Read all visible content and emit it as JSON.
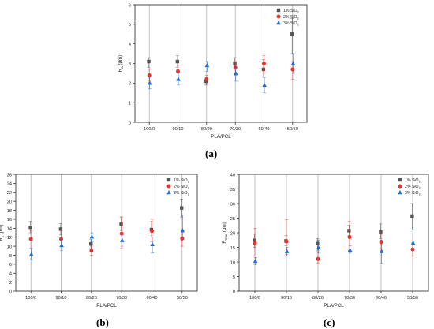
{
  "figure": {
    "panel_labels": [
      "(a)",
      "(b)",
      "(c)"
    ]
  },
  "series_colors": [
    "#555555",
    "#e8332c",
    "#1f6fd1"
  ],
  "series_markers": [
    "square",
    "circle",
    "triangle"
  ],
  "chart_data": [
    {
      "type": "scatter",
      "panel": "(a)",
      "xlabel": "PLA/PCL",
      "ylabel": "Ra (μm)",
      "ylabel_main": "R",
      "ylabel_sub": "a",
      "ylabel_unit": " (μm)",
      "categories": [
        "100/0",
        "90/10",
        "80/20",
        "70/30",
        "60/40",
        "50/50"
      ],
      "ylim": [
        0,
        6
      ],
      "yticks": [
        0,
        1,
        2,
        3,
        4,
        5,
        6
      ],
      "legend_position": "top-right",
      "series": [
        {
          "name": "1% SiO2",
          "name_main": "1% SiO",
          "name_sub": "2",
          "values": [
            3.1,
            3.1,
            2.1,
            3.0,
            2.7,
            4.5
          ],
          "err_low": [
            2.8,
            2.8,
            1.9,
            2.7,
            2.3,
            3.5
          ],
          "err_high": [
            3.3,
            3.4,
            2.3,
            3.3,
            3.2,
            5.3
          ]
        },
        {
          "name": "2% SiO2",
          "name_main": "2% SiO",
          "name_sub": "2",
          "values": [
            2.4,
            2.6,
            2.2,
            2.8,
            3.0,
            2.7
          ],
          "err_low": [
            2.1,
            2.2,
            2.0,
            2.4,
            2.5,
            2.2
          ],
          "err_high": [
            2.7,
            2.9,
            2.4,
            3.1,
            3.4,
            3.1
          ]
        },
        {
          "name": "3% SiO2",
          "name_main": "3% SiO",
          "name_sub": "2",
          "values": [
            2.0,
            2.2,
            2.9,
            2.5,
            1.9,
            3.0
          ],
          "err_low": [
            1.7,
            1.9,
            2.6,
            2.1,
            1.5,
            2.5
          ],
          "err_high": [
            2.3,
            2.5,
            3.1,
            2.8,
            2.3,
            3.5
          ]
        }
      ]
    },
    {
      "type": "scatter",
      "panel": "(b)",
      "xlabel": "PLA/PCL",
      "ylabel": "Rz (μm)",
      "ylabel_main": "R",
      "ylabel_sub": "z",
      "ylabel_unit": " (μm)",
      "categories": [
        "100/0",
        "90/10",
        "80/20",
        "70/30",
        "60/40",
        "50/50"
      ],
      "ylim": [
        0,
        26
      ],
      "yticks": [
        0,
        2,
        4,
        6,
        8,
        10,
        12,
        14,
        16,
        18,
        20,
        22,
        24,
        26
      ],
      "legend_position": "top-right",
      "series": [
        {
          "name": "1% SiO2",
          "name_main": "1% SiO",
          "name_sub": "2",
          "values": [
            14.2,
            13.8,
            10.5,
            14.9,
            13.7,
            18.5
          ],
          "err_low": [
            13.0,
            12.5,
            9.5,
            13.5,
            12.0,
            16.5
          ],
          "err_high": [
            15.5,
            15.0,
            11.5,
            16.5,
            15.5,
            20.5
          ]
        },
        {
          "name": "2% SiO2",
          "name_main": "2% SiO",
          "name_sub": "2",
          "values": [
            11.6,
            11.6,
            9.0,
            12.8,
            13.4,
            11.7
          ],
          "err_low": [
            9.5,
            10.0,
            8.0,
            9.5,
            11.0,
            10.0
          ],
          "err_high": [
            13.5,
            13.5,
            10.0,
            16.5,
            16.0,
            13.5
          ]
        },
        {
          "name": "3% SiO2",
          "name_main": "3% SiO",
          "name_sub": "2",
          "values": [
            8.2,
            10.2,
            12.1,
            11.3,
            10.4,
            13.5
          ],
          "err_low": [
            7.0,
            9.0,
            11.0,
            10.0,
            8.5,
            12.0
          ],
          "err_high": [
            9.5,
            11.5,
            13.0,
            12.5,
            12.0,
            17.0
          ]
        }
      ]
    },
    {
      "type": "scatter",
      "panel": "(c)",
      "xlabel": "PLA/PCL",
      "ylabel": "Rmax (μm)",
      "ylabel_main": "R",
      "ylabel_sub": "max",
      "ylabel_unit": " (μm)",
      "categories": [
        "100/0",
        "90/10",
        "80/20",
        "70/30",
        "60/40",
        "50/50"
      ],
      "ylim": [
        0,
        40
      ],
      "yticks": [
        0,
        5,
        10,
        15,
        20,
        25,
        30,
        35,
        40
      ],
      "legend_position": "top-right",
      "series": [
        {
          "name": "1% SiO2",
          "name_main": "1% SiO",
          "name_sub": "2",
          "values": [
            17.4,
            17.2,
            16.3,
            20.7,
            20.3,
            25.7
          ],
          "err_low": [
            15.0,
            15.5,
            14.0,
            19.0,
            18.0,
            21.0
          ],
          "err_high": [
            19.5,
            19.0,
            18.0,
            22.5,
            23.0,
            30.0
          ]
        },
        {
          "name": "2% SiO2",
          "name_main": "2% SiO",
          "name_sub": "2",
          "values": [
            16.4,
            17.0,
            11.0,
            18.5,
            16.8,
            14.3
          ],
          "err_low": [
            12.0,
            12.5,
            9.5,
            14.0,
            14.0,
            12.0
          ],
          "err_high": [
            21.5,
            24.5,
            13.5,
            24.0,
            19.5,
            16.5
          ]
        },
        {
          "name": "3% SiO2",
          "name_main": "3% SiO",
          "name_sub": "2",
          "values": [
            10.3,
            13.6,
            14.9,
            14.1,
            13.6,
            16.5
          ],
          "err_low": [
            9.0,
            12.0,
            13.0,
            13.0,
            9.5,
            14.5
          ],
          "err_high": [
            11.5,
            15.0,
            17.5,
            15.5,
            17.5,
            21.0
          ]
        }
      ]
    }
  ]
}
